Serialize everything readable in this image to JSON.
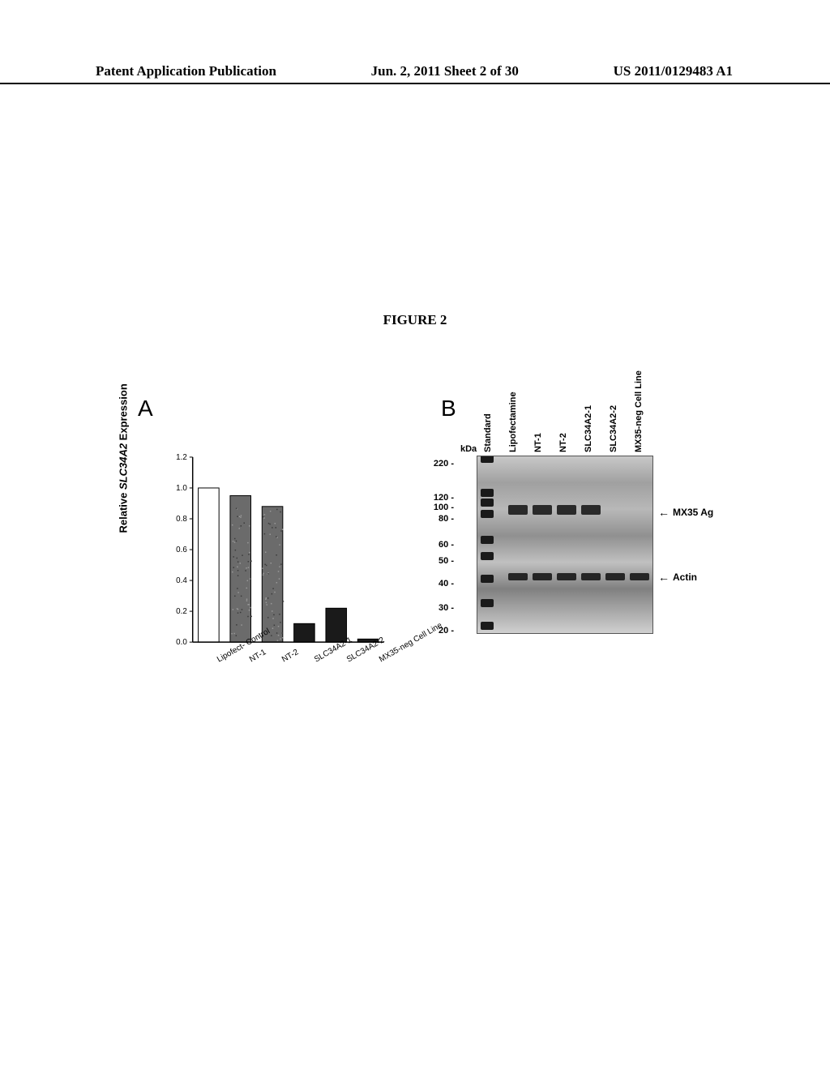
{
  "header": {
    "left": "Patent Application Publication",
    "center": "Jun. 2, 2011  Sheet 2 of 30",
    "right": "US 2011/0129483 A1"
  },
  "figure_title": "FIGURE 2",
  "panel_a": {
    "label": "A",
    "y_axis_label_prefix": "Relative ",
    "y_axis_label_italic": "SLC34A2",
    "y_axis_label_suffix": " Expression",
    "chart": {
      "type": "bar",
      "categories": [
        "Lipofect-\nControl",
        "NT-1",
        "NT-2",
        "SLC34A2-1",
        "SLC34A2-2",
        "MX35-neg\nCell Line"
      ],
      "values": [
        1.0,
        0.95,
        0.88,
        0.12,
        0.22,
        0.02
      ],
      "fill_patterns": [
        "white",
        "noise",
        "noise",
        "black",
        "black",
        "black"
      ],
      "ylim": [
        0.0,
        1.2
      ],
      "ytick_step": 0.2,
      "yticks": [
        "0.0",
        "0.2",
        "0.4",
        "0.6",
        "0.8",
        "1.0",
        "1.2"
      ],
      "bar_colors": [
        "#ffffff",
        "#6b6b6b",
        "#6b6b6b",
        "#1a1a1a",
        "#1a1a1a",
        "#1a1a1a"
      ],
      "axis_color": "#000000",
      "bar_width": 0.65
    }
  },
  "panel_b": {
    "label": "B",
    "kda_label": "kDa",
    "lane_labels": [
      "Standard",
      "Lipofectamine",
      "NT-1",
      "NT-2",
      "SLC34A2-1",
      "SLC34A2-2",
      "MX35-neg Cell Line"
    ],
    "mw_markers": [
      {
        "label": "220 -",
        "y": 0
      },
      {
        "label": "120 -",
        "y": 42
      },
      {
        "label": "100 -",
        "y": 54
      },
      {
        "label": "80 -",
        "y": 68
      },
      {
        "label": "60 -",
        "y": 100
      },
      {
        "label": "50 -",
        "y": 120
      },
      {
        "label": "40 -",
        "y": 148
      },
      {
        "label": "30 -",
        "y": 178
      },
      {
        "label": "20 -",
        "y": 206
      }
    ],
    "arrow_labels": [
      {
        "text": "MX35 Ag",
        "y": 68
      },
      {
        "text": "Actin",
        "y": 148
      }
    ]
  }
}
